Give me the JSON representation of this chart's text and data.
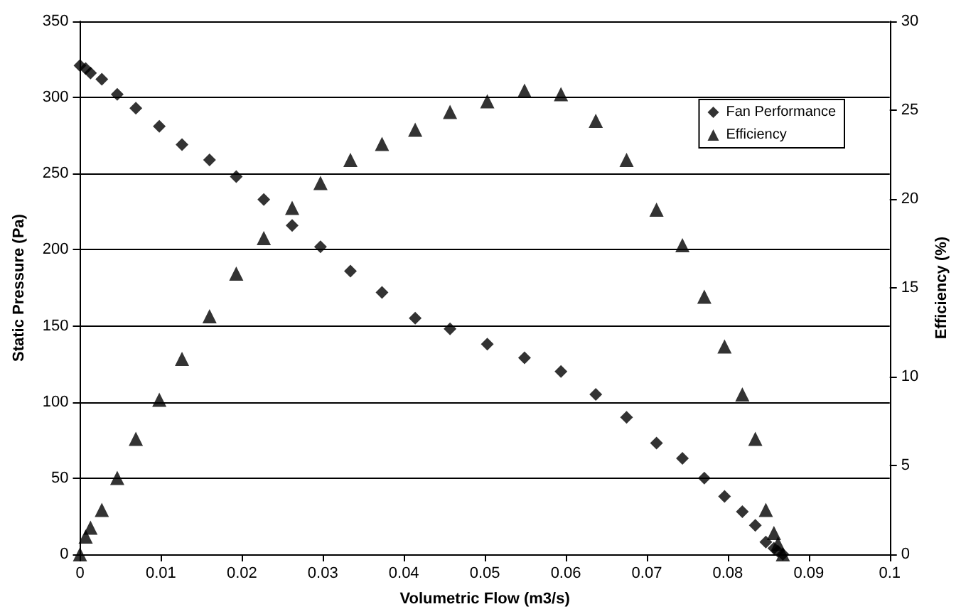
{
  "chart_data": {
    "type": "scatter",
    "xlabel": "Volumetric Flow (m3/s)",
    "ylabel": "Static Pressure (Pa)",
    "y2label": "Efficiency (%)",
    "x": [
      0,
      0.0007,
      0.0013,
      0.0027,
      0.0046,
      0.0069,
      0.0098,
      0.0126,
      0.016,
      0.0193,
      0.0227,
      0.0262,
      0.0297,
      0.0334,
      0.0373,
      0.0414,
      0.0457,
      0.0503,
      0.0549,
      0.0594,
      0.0637,
      0.0675,
      0.0712,
      0.0744,
      0.0771,
      0.0796,
      0.0818,
      0.0834,
      0.0847,
      0.0857,
      0.0862,
      0.0868
    ],
    "series": [
      {
        "name": "Fan Performance",
        "color": "#000000",
        "marker": "diamond",
        "values": [
          321,
          319,
          316,
          312,
          302,
          293,
          281,
          269,
          259,
          248,
          233,
          216,
          202,
          186,
          172,
          155,
          148,
          138,
          129,
          120,
          105,
          90,
          73,
          63,
          50,
          38,
          28,
          19,
          8,
          4,
          2,
          0
        ]
      },
      {
        "name": "Efficiency",
        "color": "#000000",
        "marker": "triangle",
        "axis": "y2",
        "values": [
          0,
          1.0,
          1.5,
          2.5,
          4.3,
          6.5,
          8.7,
          11.0,
          13.4,
          15.8,
          17.8,
          19.5,
          20.9,
          22.2,
          23.1,
          23.9,
          24.9,
          25.5,
          26.1,
          25.9,
          24.4,
          22.2,
          19.4,
          17.4,
          14.5,
          11.7,
          9.0,
          6.5,
          2.5,
          1.2,
          0.6,
          0
        ]
      }
    ],
    "xlim": [
      0,
      0.1
    ],
    "xticks": [
      0,
      0.01,
      0.02,
      0.03,
      0.04,
      0.05,
      0.06,
      0.07,
      0.08,
      0.09,
      0.1
    ],
    "ylim": [
      0,
      350
    ],
    "yticks": [
      0,
      50,
      100,
      150,
      200,
      250,
      300,
      350
    ],
    "y2lim": [
      0,
      30
    ],
    "y2ticks": [
      0,
      5,
      10,
      15,
      20,
      25,
      30
    ],
    "grid": "y",
    "legend": "top right"
  }
}
